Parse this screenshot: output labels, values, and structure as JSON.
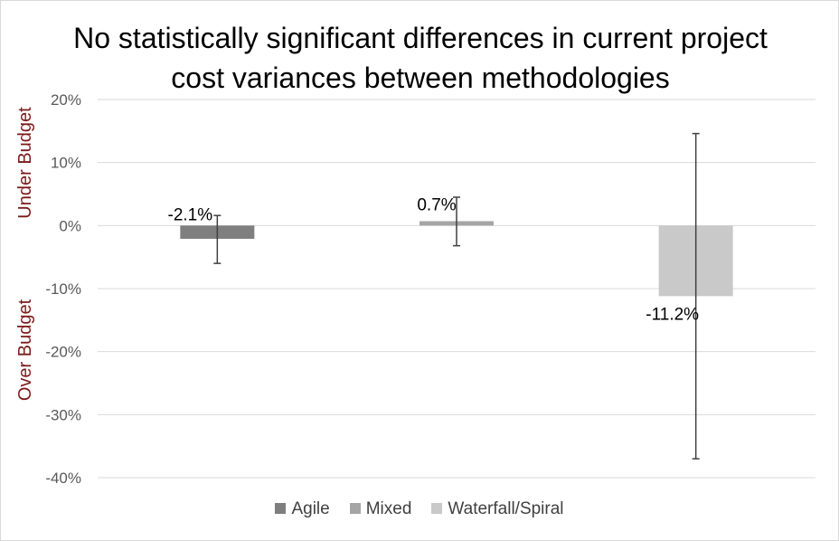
{
  "chart_data": {
    "type": "bar",
    "title": "No statistically significant differences in current project cost variances between methodologies",
    "categories": [
      "Agile",
      "Mixed",
      "Waterfall/Spiral"
    ],
    "values": [
      -2.1,
      0.7,
      -11.2
    ],
    "data_labels": [
      "-2.1%",
      "0.7%",
      "-11.2%"
    ],
    "error_bars": [
      {
        "low": -6.0,
        "high": 1.6
      },
      {
        "low": -3.2,
        "high": 4.5
      },
      {
        "low": -37.0,
        "high": 14.6
      }
    ],
    "yticks": [
      20,
      10,
      0,
      -10,
      -20,
      -30,
      -40
    ],
    "ytick_labels": [
      "20%",
      "10%",
      "0%",
      "-10%",
      "-20%",
      "-30%",
      "-40%"
    ],
    "ylim": [
      -40,
      20
    ],
    "y_side_labels": {
      "upper": "Under Budget",
      "lower": "Over Budget"
    },
    "series": [
      {
        "name": "Agile",
        "color": "#7f7f7f"
      },
      {
        "name": "Mixed",
        "color": "#a5a5a5"
      },
      {
        "name": "Waterfall/Spiral",
        "color": "#c9c9c9"
      }
    ],
    "grid": true,
    "legend_position": "bottom",
    "colors": {
      "grid": "#d9d9d9",
      "axis_text": "#595959",
      "side_label": "#7b1a1a",
      "error_bar": "#404040"
    }
  }
}
